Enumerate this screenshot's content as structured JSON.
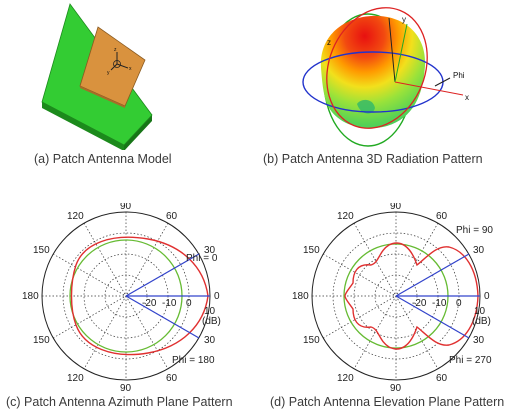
{
  "panels": {
    "a": {
      "caption": "(a) Patch Antenna Model",
      "axis_x": "x",
      "axis_y": "y",
      "axis_z": "z",
      "colors": {
        "substrate_top": "#33cc33",
        "substrate_side": "#1f8f1f",
        "patch": "#d9923e"
      }
    },
    "b": {
      "caption": "(b) Patch Antenna 3D Radiation Pattern",
      "axis_x": "x",
      "axis_y": "y",
      "axis_z": "z",
      "phi_label": "Phi"
    },
    "c": {
      "caption": "(c) Patch Antenna Azimuth Plane Pattern",
      "angle_labels": {
        "a90": "90",
        "a60": "60",
        "a30": "30",
        "a0": "0",
        "a330": "30",
        "a300": "60",
        "a270": "90",
        "a240": "120",
        "a210": "150",
        "a180": "180",
        "a150": "150",
        "a120": "120"
      },
      "radial_labels": [
        "-20",
        "-10",
        "0",
        "10"
      ],
      "unit": "(dB)",
      "phi_upper": "Phi = 0",
      "phi_lower": "Phi = 180",
      "colors": {
        "pattern": "#e03030",
        "ref_circle": "#66bb33",
        "cut_line": "#3344cc"
      }
    },
    "d": {
      "caption": "(d) Patch Antenna Elevation Plane Pattern",
      "angle_labels": {
        "a90": "90",
        "a60": "60",
        "a30": "30",
        "a0": "0",
        "a330": "30",
        "a300": "60",
        "a270": "90",
        "a240": "120",
        "a210": "150",
        "a180": "180",
        "a150": "150",
        "a120": "120"
      },
      "radial_labels": [
        "-20",
        "-10",
        "0",
        "10"
      ],
      "unit": "(dB)",
      "phi_upper": "Phi = 90",
      "phi_lower": "Phi = 270",
      "colors": {
        "pattern": "#e03030",
        "ref_circle": "#66bb33",
        "cut_line": "#3344cc"
      }
    }
  }
}
